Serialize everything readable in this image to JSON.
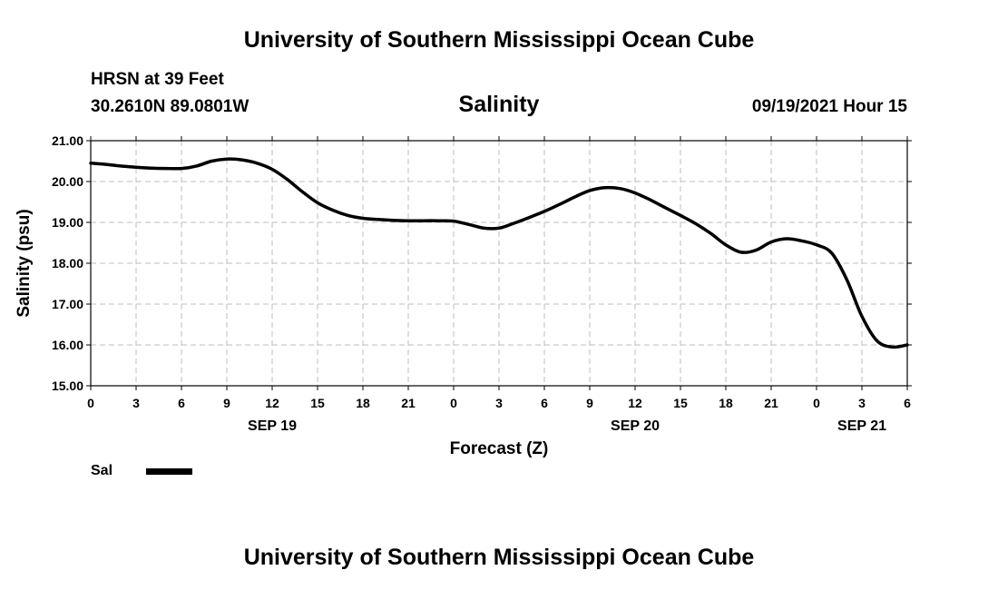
{
  "header": {
    "title": "University of Southern Mississippi Ocean Cube",
    "station_name": "HRSN at 39 Feet",
    "station_coords": "30.2610N  89.0801W",
    "chart_title": "Salinity",
    "valid_time": "09/19/2021 Hour 15"
  },
  "footer": {
    "title": "University of Southern Mississippi Ocean Cube"
  },
  "legend": {
    "label": "Sal",
    "color": "#000000"
  },
  "chart_data": {
    "type": "line",
    "title": "Salinity",
    "xlabel": "Forecast (Z)",
    "ylabel": "Salinity (psu)",
    "ylim": [
      15,
      21
    ],
    "yticks": [
      "15.00",
      "16.00",
      "17.00",
      "18.00",
      "19.00",
      "20.00",
      "21.00"
    ],
    "x_range_hours": [
      0,
      54
    ],
    "xticks": [
      "0",
      "3",
      "6",
      "9",
      "12",
      "15",
      "18",
      "21",
      "0",
      "3",
      "6",
      "9",
      "12",
      "15",
      "18",
      "21",
      "0",
      "3",
      "6"
    ],
    "day_labels": [
      {
        "text": "SEP 19",
        "at_hour": 12
      },
      {
        "text": "SEP 20",
        "at_hour": 36
      },
      {
        "text": "SEP 21",
        "at_hour": 51
      }
    ],
    "grid": true,
    "line_color": "#000000",
    "series": [
      {
        "name": "Sal",
        "x": [
          0,
          1,
          2,
          3,
          4,
          5,
          6,
          7,
          8,
          9,
          10,
          11,
          12,
          13,
          14,
          15,
          16,
          17,
          18,
          19,
          20,
          21,
          22,
          23,
          24,
          25,
          26,
          27,
          28,
          29,
          30,
          31,
          32,
          33,
          34,
          35,
          36,
          37,
          38,
          39,
          40,
          41,
          42,
          43,
          44,
          45,
          46,
          47,
          48,
          49,
          50,
          51,
          52,
          53,
          54
        ],
        "values": [
          20.45,
          20.42,
          20.38,
          20.35,
          20.33,
          20.32,
          20.32,
          20.38,
          20.5,
          20.55,
          20.53,
          20.45,
          20.3,
          20.05,
          19.75,
          19.48,
          19.3,
          19.17,
          19.1,
          19.07,
          19.05,
          19.04,
          19.04,
          19.04,
          19.03,
          18.95,
          18.86,
          18.86,
          18.98,
          19.12,
          19.27,
          19.44,
          19.62,
          19.78,
          19.85,
          19.83,
          19.72,
          19.55,
          19.36,
          19.17,
          18.97,
          18.73,
          18.45,
          18.27,
          18.32,
          18.52,
          18.6,
          18.55,
          18.45,
          18.25,
          17.6,
          16.7,
          16.1,
          15.95,
          16.0
        ]
      }
    ]
  }
}
